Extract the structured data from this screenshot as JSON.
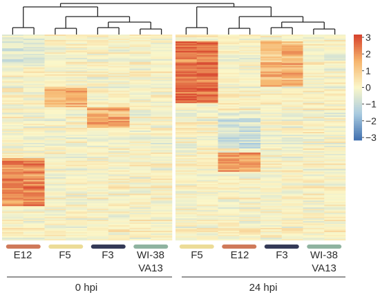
{
  "chart_data": {
    "type": "heatmap",
    "title": "",
    "colorbar": {
      "ticks": [
        "3",
        "2",
        "1",
        "0",
        "−1",
        "−2",
        "−3"
      ],
      "range": [
        -3,
        3
      ],
      "colors": {
        "low": "#3f6fae",
        "mid": "#fbf7c9",
        "high": "#d6402b"
      }
    },
    "panels": [
      {
        "label": "0 hpi",
        "columns": 8,
        "groups": [
          {
            "name": "E12",
            "color": "#cf7a5a"
          },
          {
            "name": "F5",
            "color": "#ecdc97"
          },
          {
            "name": "F3",
            "color": "#343a57"
          },
          {
            "name": "WI-38\nVA13",
            "color": "#8fb3a0"
          }
        ],
        "dendrogram": {
          "root_split": "E12 | (F5 | (F3 | WI-38 VA13))"
        }
      },
      {
        "label": "24 hpi",
        "columns": 8,
        "groups": [
          {
            "name": "F5",
            "color": "#ecdc97"
          },
          {
            "name": "E12",
            "color": "#cf7a5a"
          },
          {
            "name": "F3",
            "color": "#343a57"
          },
          {
            "name": "WI-38\nVA13",
            "color": "#8fb3a0"
          }
        ],
        "dendrogram": {
          "root_split": "F5 | (E12 | (F3 | WI-38 VA13))"
        }
      }
    ],
    "rows_approx": 150,
    "row_pattern_note_values_only": {
      "panel0_E12_high_rows": [
        0.6,
        0.83
      ],
      "panel0_F5_high_rows": [
        0.25,
        0.35
      ],
      "panel0_F3_high_rows": [
        0.35,
        0.45
      ],
      "panel1_F5_high_rows": [
        0.03,
        0.33
      ],
      "panel1_E12_high_rows": [
        0.57,
        0.66
      ],
      "panel1_F3_high_rows": [
        0.03,
        0.25
      ]
    }
  },
  "panel_labels": {
    "left": "0 hpi",
    "right": "24 hpi"
  },
  "group_labels": {
    "p0": [
      "E12",
      "F5",
      "F3",
      "WI-38",
      "VA13"
    ],
    "p1": [
      "F5",
      "E12",
      "F3",
      "WI-38",
      "VA13"
    ]
  }
}
